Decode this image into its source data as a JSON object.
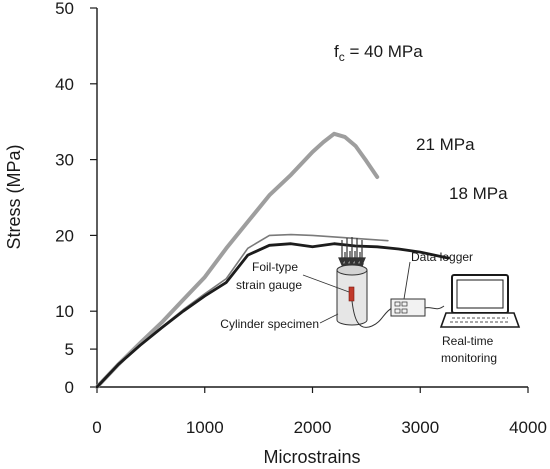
{
  "chart_data": {
    "type": "line",
    "xlabel": "Microstrains",
    "ylabel": "Stress (MPa)",
    "xlim": [
      0,
      4000
    ],
    "ylim": [
      0,
      50
    ],
    "xticks": [
      0,
      1000,
      2000,
      3000,
      4000
    ],
    "yticks": [
      0,
      5,
      10,
      20,
      30,
      40,
      50
    ],
    "grid": false,
    "legend": "none",
    "series": [
      {
        "name": "f′c = 40 MPa",
        "label_prefix": "f",
        "label_sub": "c",
        "label_suffix": " = 40 MPa",
        "color": "#9e9e9e",
        "x": [
          0,
          200,
          400,
          600,
          800,
          1000,
          1200,
          1400,
          1600,
          1800,
          2000,
          2100,
          2200,
          2300,
          2400,
          2500,
          2600
        ],
        "y": [
          0,
          3,
          5.8,
          8.5,
          11.5,
          14.5,
          18.3,
          21.8,
          25.3,
          28,
          31,
          32.3,
          33.4,
          33,
          31.8,
          29.8,
          27.7
        ]
      },
      {
        "name": "21 MPa",
        "color": "#7a7a7a",
        "x": [
          0,
          200,
          400,
          600,
          800,
          1000,
          1200,
          1400,
          1600,
          1800,
          2000,
          2200,
          2400,
          2600,
          2700
        ],
        "y": [
          0,
          3,
          5.5,
          7.9,
          10.2,
          12.3,
          14.3,
          18.3,
          20,
          20.1,
          20,
          19.8,
          19.6,
          19.4,
          19.3
        ]
      },
      {
        "name": "18 MPa",
        "color": "#1c1c1c",
        "x": [
          0,
          200,
          400,
          600,
          800,
          1000,
          1200,
          1400,
          1600,
          1800,
          2000,
          2200,
          2400,
          2600,
          2800,
          3000,
          3260
        ],
        "y": [
          0,
          3,
          5.5,
          7.8,
          10,
          12,
          13.8,
          17.4,
          18.7,
          18.9,
          18.5,
          18.9,
          18.6,
          18.5,
          18.2,
          17.8,
          17
        ]
      }
    ],
    "inset": {
      "gauge_label_line1": "Foil-type",
      "gauge_label_line2": "strain gauge",
      "specimen_label": "Cylinder specimen",
      "logger_label": "Data logger",
      "monitor_label_line1": "Real-time",
      "monitor_label_line2": "monitoring"
    }
  }
}
